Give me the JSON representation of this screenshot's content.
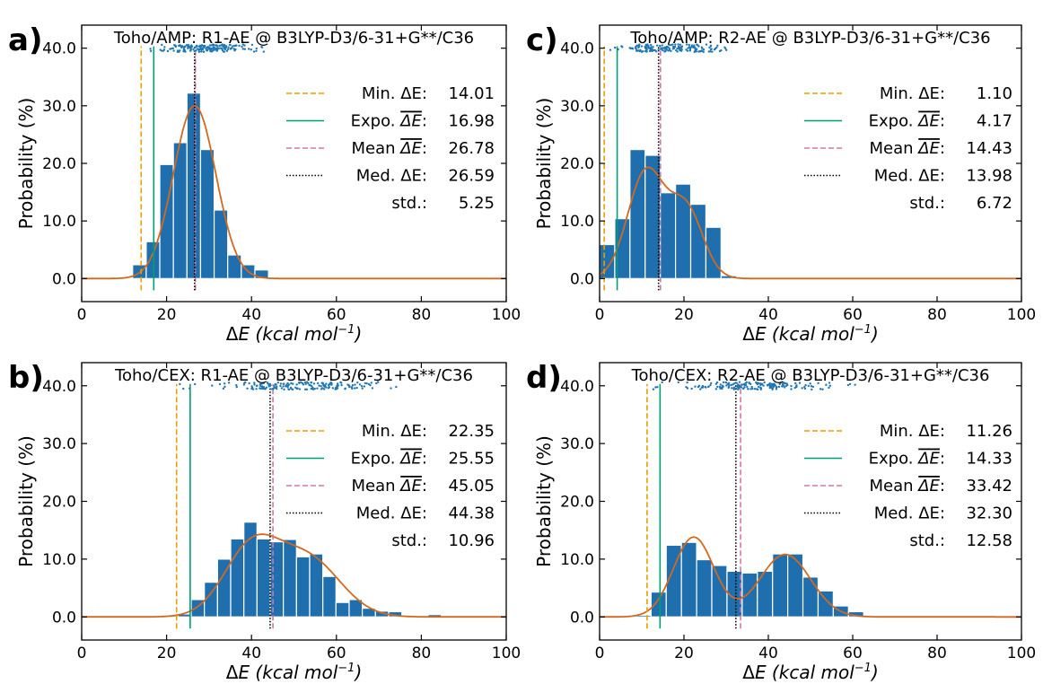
{
  "figure": {
    "axis_font": "ΔE (kcal mol⁻¹)",
    "ylabel": "Probability (%)",
    "colors": {
      "bar": "#1f6fae",
      "bar_edge": "#ffffff",
      "fit": "#d2691e",
      "min": "#e69f00",
      "expo": "#009e73",
      "mean": "#cc79a7",
      "median": "#000000",
      "scatter": "#1f77b4"
    }
  },
  "legend_labels": {
    "min": "Min. ΔE:",
    "expo": "Expo. ΔE:",
    "mean": "Mean ΔE:",
    "med": "Med. ΔE:",
    "std": "std.:"
  },
  "chart_data": [
    {
      "panel": "a)",
      "type": "bar",
      "title": "Toho/AMP: R1-AE @ B3LYP-D3/6-31+G**/C36",
      "xlabel": "ΔE (kcal mol⁻¹)",
      "ylabel": "Probability (%)",
      "xlim": [
        0,
        100
      ],
      "ylim": [
        -4,
        44
      ],
      "xticks": [
        "0",
        "20",
        "40",
        "60",
        "80",
        "100"
      ],
      "yticks": [
        "0.0",
        "10.0",
        "20.0",
        "30.0",
        "40.0"
      ],
      "bin_width": 3.2,
      "bin_starts": [
        12.0,
        15.2,
        18.4,
        21.6,
        24.8,
        28.0,
        31.2,
        34.4,
        37.6,
        40.8
      ],
      "values": [
        2.4,
        6.4,
        19.8,
        23.6,
        32.2,
        22.4,
        11.9,
        4.1,
        2.4,
        1.5
      ],
      "fit_components": [
        {
          "mu": 26.6,
          "sigma": 5.0,
          "amp": 30.0
        }
      ],
      "scatter_range": [
        14.0,
        44.5
      ],
      "lines": {
        "min": 14.01,
        "expo": 16.98,
        "mean": 26.78,
        "median": 26.59
      },
      "legend_values": {
        "min": "14.01",
        "expo": "16.98",
        "mean": "26.78",
        "med": "26.59",
        "std": "5.25"
      },
      "std": 5.25
    },
    {
      "panel": "c)",
      "type": "bar",
      "title": "Toho/AMP: R2-AE @ B3LYP-D3/6-31+G**/C36",
      "xlabel": "ΔE (kcal mol⁻¹)",
      "ylabel": "Probability (%)",
      "xlim": [
        0,
        100
      ],
      "ylim": [
        -4,
        44
      ],
      "xticks": [
        "0",
        "20",
        "40",
        "60",
        "80",
        "100"
      ],
      "yticks": [
        "0.0",
        "10.0",
        "20.0",
        "30.0",
        "40.0"
      ],
      "bin_width": 3.6,
      "bin_starts": [
        0.0,
        3.6,
        7.2,
        10.8,
        14.4,
        18.0,
        21.6,
        25.2,
        28.8
      ],
      "values": [
        5.9,
        10.4,
        22.4,
        21.4,
        14.9,
        16.4,
        12.9,
        8.9,
        0.5
      ],
      "fit_components": [
        {
          "mu": 11.0,
          "sigma": 4.3,
          "amp": 18.5
        },
        {
          "mu": 20.5,
          "sigma": 4.0,
          "amp": 12.0
        }
      ],
      "scatter_range": [
        1.1,
        33.0
      ],
      "lines": {
        "min": 1.1,
        "expo": 4.17,
        "mean": 14.43,
        "median": 13.98
      },
      "legend_values": {
        "min": "1.10",
        "expo": "4.17",
        "mean": "14.43",
        "med": "13.98",
        "std": "6.72"
      },
      "std": 6.72
    },
    {
      "panel": "b)",
      "type": "bar",
      "title": "Toho/CEX: R1-AE @ B3LYP-D3/6-31+G**/C36",
      "xlabel": "ΔE (kcal mol⁻¹)",
      "ylabel": "Probability (%)",
      "xlim": [
        0,
        100
      ],
      "ylim": [
        -4,
        44
      ],
      "xticks": [
        "0",
        "20",
        "40",
        "60",
        "80",
        "100"
      ],
      "yticks": [
        "0.0",
        "10.0",
        "20.0",
        "30.0",
        "40.0"
      ],
      "bin_width": 3.1,
      "bin_starts": [
        19.6,
        22.7,
        25.8,
        28.9,
        32.0,
        35.1,
        38.2,
        41.3,
        44.4,
        47.5,
        50.6,
        53.7,
        56.8,
        59.9,
        63.0,
        66.1,
        69.2,
        72.3,
        75.4,
        78.5,
        81.6
      ],
      "values": [
        0.3,
        0.5,
        3.0,
        6.0,
        10.0,
        13.5,
        16.4,
        13.5,
        13.0,
        13.4,
        10.4,
        10.9,
        7.0,
        2.5,
        3.0,
        1.5,
        1.0,
        0.9,
        0.0,
        0.0,
        0.4
      ],
      "fit_components": [
        {
          "mu": 40.0,
          "sigma": 6.5,
          "amp": 11.8
        },
        {
          "mu": 53.5,
          "sigma": 7.5,
          "amp": 9.8
        }
      ],
      "scatter_range": [
        22.3,
        82.0
      ],
      "lines": {
        "min": 22.35,
        "expo": 25.55,
        "mean": 45.05,
        "median": 44.38
      },
      "legend_values": {
        "min": "22.35",
        "expo": "25.55",
        "mean": "45.05",
        "med": "44.38",
        "std": "10.96"
      },
      "std": 10.96
    },
    {
      "panel": "d)",
      "type": "bar",
      "title": "Toho/CEX: R2-AE @ B3LYP-D3/6-31+G**/C36",
      "xlabel": "ΔE (kcal mol⁻¹)",
      "ylabel": "Probability (%)",
      "xlim": [
        0,
        100
      ],
      "ylim": [
        -4,
        44
      ],
      "xticks": [
        "0",
        "20",
        "40",
        "60",
        "80",
        "100"
      ],
      "yticks": [
        "0.0",
        "10.0",
        "20.0",
        "30.0",
        "40.0"
      ],
      "bin_width": 3.6,
      "bin_starts": [
        8.6,
        12.2,
        15.8,
        19.4,
        23.0,
        26.6,
        30.2,
        33.8,
        37.4,
        41.0,
        44.6,
        48.2,
        51.8,
        55.4,
        59.0
      ],
      "values": [
        0.3,
        4.3,
        12.4,
        12.9,
        9.9,
        8.9,
        7.9,
        7.6,
        7.9,
        10.9,
        10.9,
        6.9,
        4.5,
        1.9,
        0.9
      ],
      "fit_components": [
        {
          "mu": 22.3,
          "sigma": 4.8,
          "amp": 13.8
        },
        {
          "mu": 44.0,
          "sigma": 6.0,
          "amp": 10.8
        }
      ],
      "scatter_range": [
        11.0,
        63.0
      ],
      "lines": {
        "min": 11.26,
        "expo": 14.33,
        "mean": 33.42,
        "median": 32.3
      },
      "legend_values": {
        "min": "11.26",
        "expo": "14.33",
        "mean": "33.42",
        "med": "32.30",
        "std": "12.58"
      },
      "std": 12.58
    }
  ]
}
